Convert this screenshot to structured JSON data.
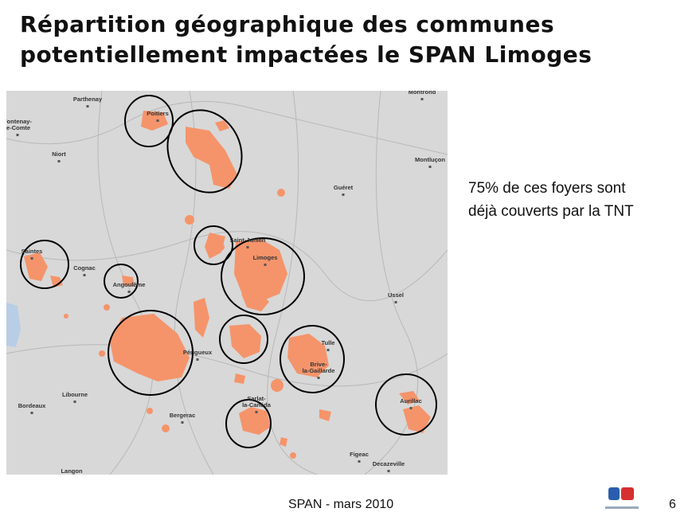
{
  "header": {
    "title_lines": [
      "Répartition géographique des communes",
      "potentiellement impactées le SPAN Limoges"
    ]
  },
  "map": {
    "places": [
      {
        "lines": [
          "Parthenay"
        ]
      },
      {
        "lines": [
          "Montrond"
        ]
      },
      {
        "lines": [
          "Fontenay-",
          "le-Comte"
        ]
      },
      {
        "lines": [
          "Poitiers"
        ]
      },
      {
        "lines": [
          "Niort"
        ]
      },
      {
        "lines": [
          "Montluçon"
        ]
      },
      {
        "lines": [
          "Guéret"
        ]
      },
      {
        "lines": [
          "Saint-Junien"
        ]
      },
      {
        "lines": [
          "Saintes"
        ]
      },
      {
        "lines": [
          "Limoges"
        ]
      },
      {
        "lines": [
          "Cognac"
        ]
      },
      {
        "lines": [
          "Angoulême"
        ]
      },
      {
        "lines": [
          "Ussel"
        ]
      },
      {
        "lines": [
          "Tulle"
        ]
      },
      {
        "lines": [
          "Périgueux"
        ]
      },
      {
        "lines": [
          "Brive-",
          "la-Gaillarde"
        ]
      },
      {
        "lines": [
          "Libourne"
        ]
      },
      {
        "lines": [
          "Bordeaux"
        ]
      },
      {
        "lines": [
          "Sarlat-",
          "la-Canéda"
        ]
      },
      {
        "lines": [
          "Aurillac"
        ]
      },
      {
        "lines": [
          "Bergerac"
        ]
      },
      {
        "lines": [
          "Figeac"
        ]
      },
      {
        "lines": [
          "Decazeville"
        ]
      },
      {
        "lines": [
          "Langon"
        ]
      }
    ]
  },
  "note_lines": [
    "75% de ces foyers sont",
    "déjà couverts par la TNT"
  ],
  "footer": {
    "text": "SPAN - mars 2010",
    "page": "6"
  }
}
